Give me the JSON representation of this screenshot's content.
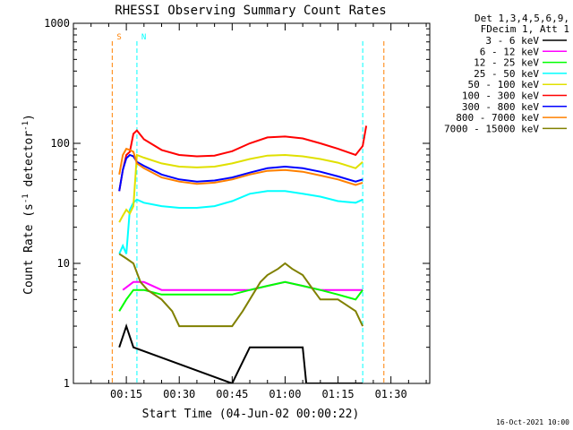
{
  "chart_data": {
    "type": "line",
    "title": "RHESSI Observing Summary Count Rates",
    "xlabel": "Start Time (04-Jun-02 00:00:22)",
    "ylabel": "Count Rate (s⁻¹ detector⁻¹)",
    "ylabel_main": "Count Rate (s",
    "ylabel_sup1": "-1",
    "ylabel_mid": " detector",
    "ylabel_sup2": "-1",
    "ylabel_end": ")",
    "y_scale": "log",
    "ylim": [
      1,
      1000
    ],
    "xlim_minutes": [
      0,
      101
    ],
    "x_ticks": [
      {
        "minutes": 15,
        "label": "00:15"
      },
      {
        "minutes": 30,
        "label": "00:30"
      },
      {
        "minutes": 45,
        "label": "00:45"
      },
      {
        "minutes": 60,
        "label": "01:00"
      },
      {
        "minutes": 75,
        "label": "01:15"
      },
      {
        "minutes": 90,
        "label": "01:30"
      }
    ],
    "y_ticks": [
      {
        "value": 1,
        "label": "1"
      },
      {
        "value": 10,
        "label": "10"
      },
      {
        "value": 100,
        "label": "100"
      },
      {
        "value": 1000,
        "label": "1000"
      }
    ],
    "legend_header": [
      "Det 1,3,4,5,6,9,",
      "FDecim 1, Att 1"
    ],
    "legend_placement": "right",
    "series": [
      {
        "name": "3 - 6 keV",
        "color": "#000000",
        "x": [
          13,
          15,
          17,
          45,
          50,
          55,
          60,
          65,
          66,
          70,
          75,
          78,
          80,
          82
        ],
        "y": [
          2,
          3,
          2,
          1,
          2,
          2,
          2,
          2,
          1,
          1,
          1,
          1,
          1,
          1
        ]
      },
      {
        "name": "6 - 12 keV",
        "color": "#ff00ff",
        "x": [
          14,
          17,
          20,
          25,
          30,
          35,
          40,
          45,
          50,
          55,
          60,
          65,
          70,
          75,
          80,
          82
        ],
        "y": [
          6,
          7,
          7,
          6,
          6,
          6,
          6,
          6,
          6,
          6.5,
          7,
          6.5,
          6,
          6,
          6,
          6
        ]
      },
      {
        "name": "12 - 25 keV",
        "color": "#00ff00",
        "x": [
          13,
          15,
          17,
          20,
          25,
          30,
          35,
          40,
          45,
          50,
          55,
          60,
          65,
          70,
          75,
          80,
          82
        ],
        "y": [
          4,
          5,
          6,
          6,
          5.5,
          5.5,
          5.5,
          5.5,
          5.5,
          6,
          6.5,
          7,
          6.5,
          6,
          5.5,
          5,
          6
        ]
      },
      {
        "name": "25 - 50 keV",
        "color": "#00ffff",
        "x": [
          13,
          14,
          15,
          16,
          17,
          18,
          20,
          25,
          30,
          35,
          40,
          45,
          50,
          55,
          60,
          65,
          70,
          75,
          80,
          82
        ],
        "y": [
          12,
          14,
          12,
          28,
          32,
          34,
          32,
          30,
          29,
          29,
          30,
          33,
          38,
          40,
          40,
          38,
          36,
          33,
          32,
          34
        ]
      },
      {
        "name": "50 - 100 keV",
        "color": "#e0e000",
        "x": [
          13,
          14,
          15,
          16,
          17,
          18,
          20,
          25,
          30,
          35,
          40,
          45,
          50,
          55,
          60,
          65,
          70,
          75,
          80,
          82
        ],
        "y": [
          22,
          25,
          28,
          26,
          30,
          80,
          76,
          68,
          64,
          63,
          64,
          68,
          74,
          79,
          80,
          78,
          74,
          69,
          62,
          70
        ]
      },
      {
        "name": "100 - 300 keV",
        "color": "#ff0000",
        "x": [
          13,
          14,
          15,
          16,
          17,
          18,
          20,
          25,
          30,
          35,
          40,
          45,
          50,
          55,
          60,
          65,
          70,
          75,
          80,
          82,
          83
        ],
        "y": [
          40,
          60,
          80,
          85,
          120,
          128,
          108,
          88,
          80,
          78,
          79,
          86,
          100,
          112,
          114,
          110,
          100,
          90,
          80,
          95,
          140
        ]
      },
      {
        "name": "300 - 800 keV",
        "color": "#0000ff",
        "x": [
          13,
          14,
          15,
          16,
          17,
          18,
          20,
          25,
          30,
          35,
          40,
          45,
          50,
          55,
          60,
          65,
          70,
          75,
          80,
          82
        ],
        "y": [
          40,
          60,
          75,
          80,
          78,
          70,
          65,
          55,
          50,
          48,
          49,
          52,
          57,
          62,
          64,
          62,
          58,
          53,
          48,
          50
        ]
      },
      {
        "name": "800 - 7000 keV",
        "color": "#ff8000",
        "x": [
          13,
          14,
          15,
          16,
          17,
          18,
          20,
          25,
          30,
          35,
          40,
          45,
          50,
          55,
          60,
          65,
          70,
          75,
          80,
          82
        ],
        "y": [
          55,
          80,
          90,
          88,
          85,
          68,
          62,
          52,
          48,
          46,
          47,
          50,
          55,
          59,
          60,
          58,
          54,
          50,
          45,
          47
        ]
      },
      {
        "name": "7000 - 15000 keV",
        "color": "#808000",
        "x": [
          13,
          15,
          17,
          19,
          21,
          25,
          28,
          30,
          35,
          40,
          45,
          48,
          50,
          53,
          55,
          58,
          60,
          62,
          65,
          68,
          70,
          75,
          80,
          82
        ],
        "y": [
          12,
          11,
          10,
          7,
          6,
          5,
          4,
          3,
          3,
          3,
          3,
          4,
          5,
          7,
          8,
          9,
          10,
          9,
          8,
          6,
          5,
          5,
          4,
          3
        ]
      }
    ],
    "attenuator_markers": [
      {
        "label": "S",
        "color": "#ff8000",
        "minutes": 11,
        "end_minutes": 88
      },
      {
        "label": "N",
        "color": "#00ffff",
        "minutes": 18,
        "end_minutes": 82
      }
    ],
    "footer_date": "16-Oct-2021 10:00"
  }
}
